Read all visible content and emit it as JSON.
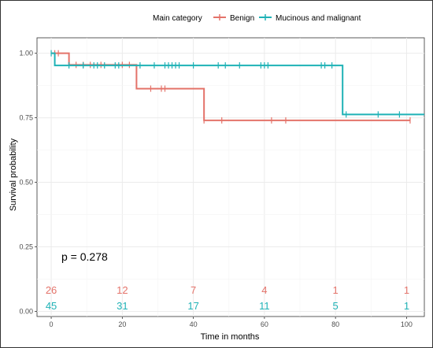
{
  "chart_data": {
    "type": "line",
    "subtype": "kaplan-meier-step",
    "xlabel": "Time in months",
    "ylabel": "Survival probability",
    "xlim": [
      -4,
      105
    ],
    "ylim": [
      -0.02,
      1.06
    ],
    "x_ticks": [
      0,
      20,
      40,
      60,
      80,
      100
    ],
    "y_ticks": [
      0.0,
      0.25,
      0.5,
      0.75,
      1.0
    ],
    "x_tick_labels": [
      "0",
      "20",
      "40",
      "60",
      "80",
      "100"
    ],
    "y_tick_labels": [
      "0.00",
      "0.25",
      "0.50",
      "0.75",
      "1.00"
    ],
    "grid": true,
    "legend": {
      "title": "Main category",
      "placement": "top",
      "entries": [
        "Benign",
        "Mucinous and malignant"
      ]
    },
    "annotation": "p = 0.278",
    "series": [
      {
        "name": "Benign",
        "color": "#e4736a",
        "steps": [
          [
            0,
            1.0
          ],
          [
            5,
            0.955
          ],
          [
            24,
            0.863
          ],
          [
            43,
            0.74
          ],
          [
            101,
            0.74
          ]
        ],
        "censors": [
          [
            1,
            1.0
          ],
          [
            2,
            1.0
          ],
          [
            7,
            0.955
          ],
          [
            9,
            0.955
          ],
          [
            11,
            0.955
          ],
          [
            14,
            0.955
          ],
          [
            20,
            0.955
          ],
          [
            22,
            0.955
          ],
          [
            28,
            0.863
          ],
          [
            31,
            0.863
          ],
          [
            32,
            0.863
          ],
          [
            43,
            0.74
          ],
          [
            48,
            0.74
          ],
          [
            62,
            0.74
          ],
          [
            66,
            0.74
          ],
          [
            101,
            0.74
          ]
        ],
        "at_risk": [
          26,
          12,
          7,
          4,
          1,
          1
        ]
      },
      {
        "name": "Mucinous and malignant",
        "color": "#1fb2b6",
        "steps": [
          [
            0,
            1.0
          ],
          [
            1,
            0.953
          ],
          [
            82,
            0.953
          ],
          [
            82,
            0.763
          ],
          [
            105,
            0.763
          ]
        ],
        "censors": [
          [
            0,
            1.0
          ],
          [
            5,
            0.953
          ],
          [
            9,
            0.953
          ],
          [
            12,
            0.953
          ],
          [
            13,
            0.953
          ],
          [
            15,
            0.953
          ],
          [
            18,
            0.953
          ],
          [
            19,
            0.953
          ],
          [
            25,
            0.953
          ],
          [
            29,
            0.953
          ],
          [
            32,
            0.953
          ],
          [
            33,
            0.953
          ],
          [
            34,
            0.953
          ],
          [
            35,
            0.953
          ],
          [
            36,
            0.953
          ],
          [
            40,
            0.953
          ],
          [
            47,
            0.953
          ],
          [
            49,
            0.953
          ],
          [
            53,
            0.953
          ],
          [
            59,
            0.953
          ],
          [
            60,
            0.953
          ],
          [
            61,
            0.953
          ],
          [
            76,
            0.953
          ],
          [
            77,
            0.953
          ],
          [
            79,
            0.953
          ],
          [
            83,
            0.763
          ],
          [
            92,
            0.763
          ],
          [
            98,
            0.763
          ]
        ],
        "at_risk": [
          45,
          31,
          17,
          11,
          5,
          1
        ]
      }
    ],
    "at_risk_x": [
      0,
      20,
      40,
      60,
      80,
      100
    ]
  }
}
